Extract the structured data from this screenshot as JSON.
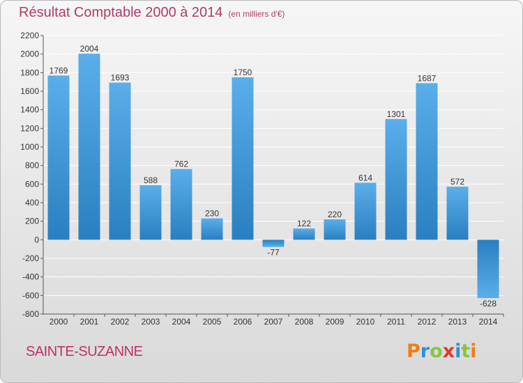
{
  "header": {
    "title": "Résultat Comptable 2000 à 2014",
    "unit": "(en milliers d'€)"
  },
  "footer": {
    "commune": "SAINTE-SUZANNE",
    "logo_letters": [
      "P",
      "r",
      "o",
      "x",
      "i",
      "t",
      "i"
    ],
    "logo_colors": [
      "#f07c16",
      "#2f8fd8",
      "#8ac43f",
      "#e03a2a",
      "#2f8fd8",
      "#8ac43f",
      "#f07c16"
    ]
  },
  "colors": {
    "bar_light": "#5aaeea",
    "bar_dark": "#2a7fc0",
    "grid": "#ffffff",
    "axis": "#555555"
  },
  "chart_data": {
    "type": "bar",
    "title": "Résultat Comptable 2000 à 2014",
    "ylabel": "en milliers d'€",
    "xlabel": "",
    "categories": [
      "2000",
      "2001",
      "2002",
      "2003",
      "2004",
      "2005",
      "2006",
      "2007",
      "2008",
      "2009",
      "2010",
      "2011",
      "2012",
      "2013",
      "2014"
    ],
    "values": [
      1769,
      2004,
      1693,
      588,
      762,
      230,
      1750,
      -77,
      122,
      220,
      614,
      1301,
      1687,
      572,
      -628
    ],
    "ylim": [
      -800,
      2200
    ],
    "yticks": [
      -800,
      -600,
      -400,
      -200,
      0,
      200,
      400,
      600,
      800,
      1000,
      1200,
      1400,
      1600,
      1800,
      2000,
      2200
    ],
    "grid": true
  }
}
